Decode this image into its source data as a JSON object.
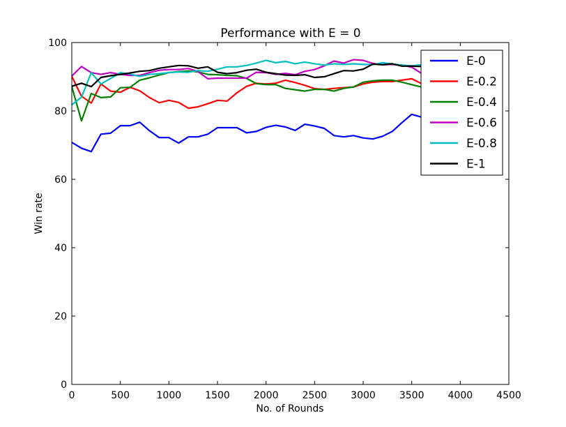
{
  "chart_data": {
    "type": "line",
    "title": "Performance with E = 0",
    "xlabel": "No. of Rounds",
    "ylabel": "Win rate",
    "xlim": [
      0,
      4500
    ],
    "ylim": [
      0,
      100
    ],
    "xticks": [
      0,
      500,
      1000,
      1500,
      2000,
      2500,
      3000,
      3500,
      4000,
      4500
    ],
    "yticks": [
      0,
      20,
      40,
      60,
      80,
      100
    ],
    "xtick_labels": [
      "0",
      "500",
      "1000",
      "1500",
      "2000",
      "2500",
      "3000",
      "3500",
      "4000",
      "4500"
    ],
    "ytick_labels": [
      "0",
      "20",
      "40",
      "60",
      "80",
      "100"
    ],
    "grid": false,
    "legend_position": "top-right",
    "x": [
      0,
      100,
      200,
      300,
      400,
      500,
      600,
      700,
      800,
      900,
      1000,
      1100,
      1200,
      1300,
      1400,
      1500,
      1600,
      1700,
      1800,
      1900,
      2000,
      2100,
      2200,
      2300,
      2400,
      2500,
      2600,
      2700,
      2800,
      2900,
      3000,
      3100,
      3200,
      3300,
      3400,
      3500,
      3600,
      3700
    ],
    "series": [
      {
        "name": "E-0",
        "color": "#0000ff",
        "values": [
          70.8,
          69.1,
          68.1,
          73.2,
          73.5,
          75.7,
          75.7,
          76.7,
          74.2,
          72.2,
          72.2,
          70.6,
          72.4,
          72.4,
          73.2,
          75.1,
          75.1,
          75.1,
          73.6,
          74.0,
          75.2,
          75.8,
          75.3,
          74.3,
          76.1,
          75.6,
          74.9,
          72.8,
          72.4,
          72.8,
          72.1,
          71.8,
          72.6,
          74.0,
          76.6,
          79.0,
          78.2,
          78.0
        ]
      },
      {
        "name": "E-0.2",
        "color": "#ff0000",
        "values": [
          90.1,
          84.3,
          82.3,
          87.9,
          85.8,
          85.5,
          86.9,
          85.9,
          83.9,
          82.4,
          83.1,
          82.5,
          80.8,
          81.2,
          82.1,
          83.1,
          82.9,
          85.3,
          87.2,
          88.1,
          87.9,
          88.1,
          89.0,
          88.3,
          87.5,
          86.5,
          86.3,
          86.6,
          86.8,
          87.0,
          87.9,
          88.4,
          88.6,
          88.6,
          89.0,
          89.4,
          88.0,
          88.3
        ]
      },
      {
        "name": "E-0.4",
        "color": "#008000",
        "values": [
          87.1,
          77.1,
          85.1,
          83.9,
          84.1,
          86.8,
          86.9,
          89.0,
          89.7,
          90.5,
          91.2,
          91.5,
          91.7,
          91.4,
          90.7,
          90.6,
          90.4,
          90.3,
          89.5,
          88.0,
          87.7,
          87.7,
          86.6,
          86.2,
          85.8,
          86.3,
          86.3,
          85.8,
          86.6,
          87.0,
          88.4,
          88.8,
          89.0,
          89.0,
          88.4,
          87.7,
          87.0,
          87.0
        ]
      },
      {
        "name": "E-0.6",
        "color": "#bf00bf",
        "values": [
          90.2,
          93.0,
          91.2,
          90.7,
          91.2,
          90.7,
          90.4,
          90.4,
          91.2,
          91.9,
          92.1,
          92.1,
          92.4,
          91.5,
          89.4,
          89.6,
          89.6,
          89.6,
          89.6,
          91.3,
          91.2,
          90.7,
          91.0,
          90.6,
          91.6,
          92.1,
          93.2,
          94.6,
          94.0,
          95.0,
          94.8,
          93.9,
          93.5,
          93.6,
          93.4,
          92.8,
          91.0,
          91.5
        ]
      },
      {
        "name": "E-0.8",
        "color": "#00bfbf",
        "values": [
          81.8,
          84.0,
          91.2,
          87.9,
          89.5,
          91.2,
          90.8,
          90.1,
          90.7,
          90.9,
          91.2,
          91.4,
          91.3,
          91.8,
          91.6,
          92.2,
          92.9,
          92.9,
          93.3,
          94.0,
          94.8,
          94.1,
          94.5,
          93.8,
          94.3,
          93.8,
          93.4,
          93.8,
          93.6,
          93.8,
          93.6,
          93.6,
          94.1,
          93.7,
          93.4,
          93.2,
          93.5,
          93.6
        ]
      },
      {
        "name": "E-1",
        "color": "#000000",
        "values": [
          87.2,
          88.1,
          87.1,
          89.8,
          90.3,
          90.7,
          91.1,
          91.6,
          91.8,
          92.5,
          92.9,
          93.3,
          93.2,
          92.5,
          92.9,
          91.3,
          90.9,
          91.2,
          91.9,
          92.2,
          91.3,
          90.9,
          90.5,
          90.4,
          90.6,
          89.8,
          90.0,
          90.9,
          91.8,
          91.7,
          92.2,
          93.7,
          93.5,
          93.8,
          93.1,
          93.1,
          93.0,
          93.0
        ]
      }
    ]
  }
}
